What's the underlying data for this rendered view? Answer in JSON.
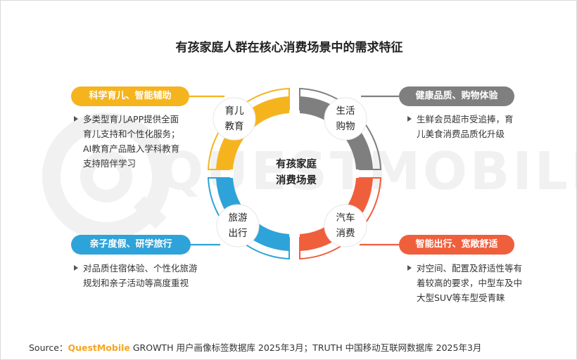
{
  "title": "有孩家庭人群在核心消费场景中的需求特征",
  "center": {
    "line1": "有孩家庭",
    "line2": "消费场景"
  },
  "watermark": "QUESTMOBILE",
  "segments": [
    {
      "id": "education",
      "line1": "育儿",
      "line2": "教育",
      "color": "#f5b41e",
      "pill": "科学育儿、智能辅助",
      "pill_color": "#f5b41e",
      "desc": [
        "多类型育儿APP提供全面",
        "育儿支持和个性化服务；",
        "AI教育产品融入学科教育",
        "支持陪伴学习"
      ]
    },
    {
      "id": "shopping",
      "line1": "生活",
      "line2": "购物",
      "color": "#7f7f7f",
      "pill": "健康品质、购物体验",
      "pill_color": "#7f7f7f",
      "desc": [
        "生鲜会员超市受追捧，育",
        "儿美食消费品质化升级"
      ]
    },
    {
      "id": "travel",
      "line1": "旅游",
      "line2": "出行",
      "color": "#2ea3d9",
      "pill": "亲子度假、研学旅行",
      "pill_color": "#2ea3d9",
      "desc": [
        "对品质住宿体验、个性化旅游",
        "规划和亲子活动等高度重视"
      ]
    },
    {
      "id": "auto",
      "line1": "汽车",
      "line2": "消费",
      "color": "#f05f3c",
      "pill": "智能出行、宽敞舒适",
      "pill_color": "#f05f3c",
      "desc": [
        "对空间、配置及舒适性等有",
        "着较高的要求，中型车及中",
        "大型SUV等车型受青睐"
      ]
    }
  ],
  "source": {
    "prefix": "Source：",
    "brand": "QuestMobile",
    "text": " GROWTH 用户画像标签数据库 2025年3月；TRUTH 中国移动互联网数据库 2025年3月"
  }
}
